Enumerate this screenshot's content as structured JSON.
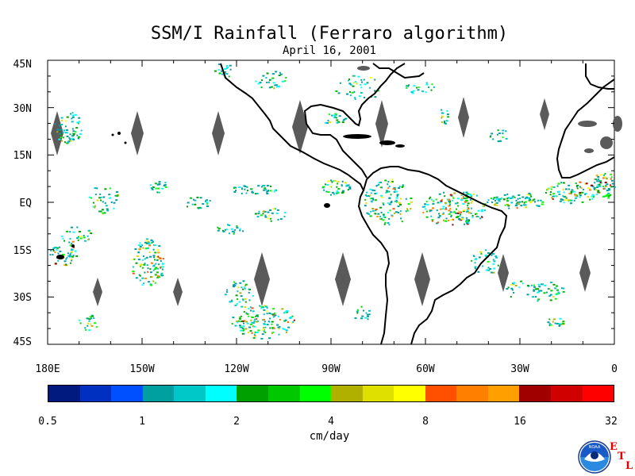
{
  "title": "SSM/I Rainfall (Ferraro algorithm)",
  "subtitle": "April 16, 2001",
  "map": {
    "lat_labels": [
      "45N",
      "30N",
      "15N",
      "EQ",
      "15S",
      "30S",
      "45S"
    ],
    "lon_labels": [
      "180E",
      "150W",
      "120W",
      "90W",
      "60W",
      "30W",
      "0"
    ],
    "lat_range": [
      -45,
      45
    ],
    "lon_range": [
      -180,
      0
    ],
    "land_outline_color": "#000000",
    "swath_gap_color": "#5a5a5a"
  },
  "colorbar": {
    "colors": [
      "#001a80",
      "#0030c0",
      "#0050ff",
      "#00a0a0",
      "#00c8c8",
      "#00ffff",
      "#00a000",
      "#00c800",
      "#00ff00",
      "#b0b000",
      "#e0e000",
      "#ffff00",
      "#ff5000",
      "#ff8000",
      "#ffa000",
      "#a00000",
      "#d00000",
      "#ff0000"
    ],
    "tick_labels": [
      "0.5",
      "1",
      "2",
      "4",
      "8",
      "16",
      "32"
    ],
    "units": "cm/day"
  },
  "logo": {
    "name": "NOAA",
    "lab_letters": [
      "E",
      "T",
      "L"
    ]
  }
}
